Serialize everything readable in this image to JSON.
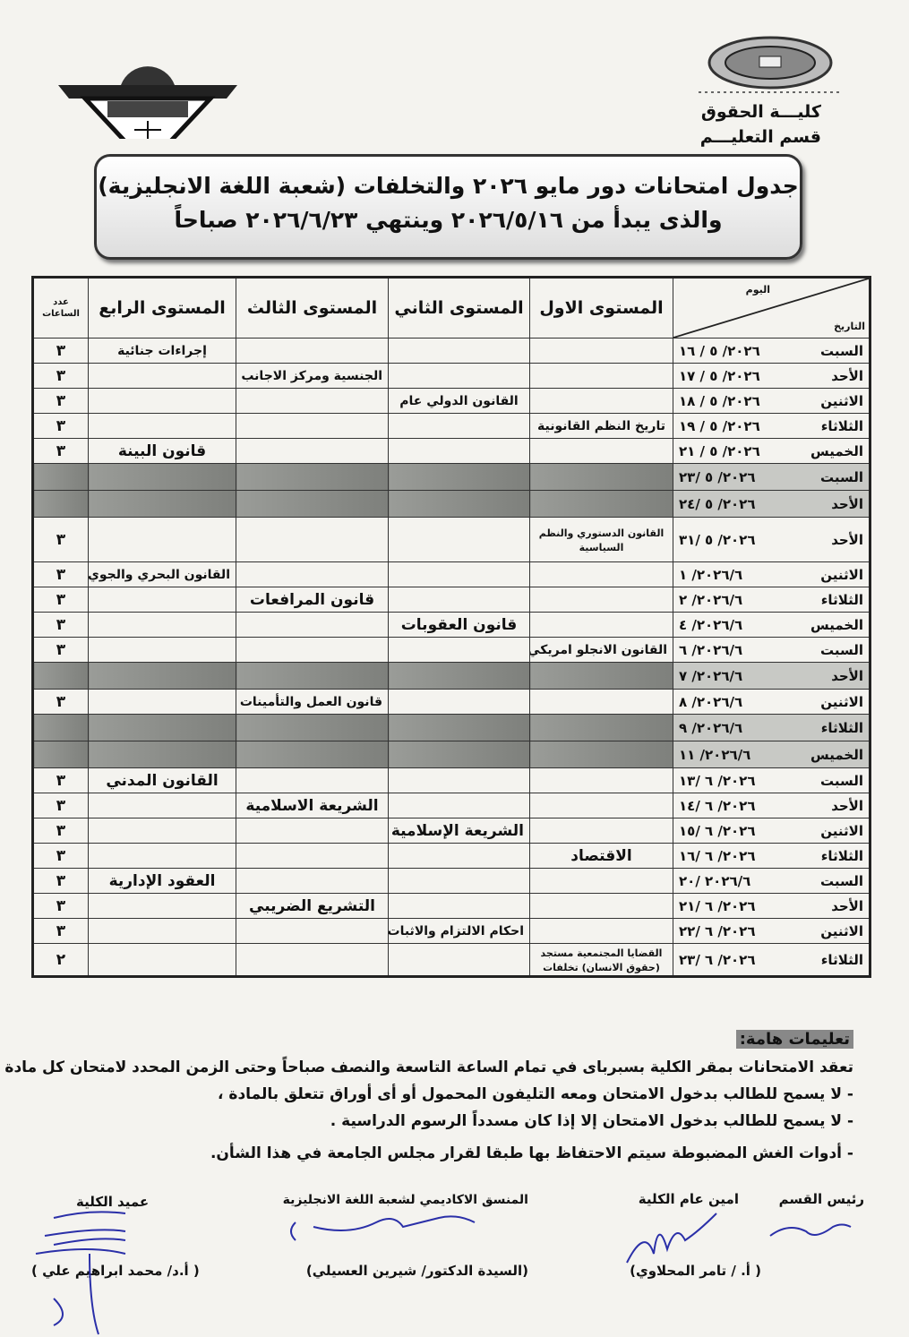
{
  "header": {
    "faculty": "كليـــة الحقوق",
    "department": "قسم التعليـــم",
    "title_line1": "جدول امتحانات دور مايو ٢٠٢٦ والتخلفات (شعبة اللغة الانجليزية)",
    "title_line2": "والذى يبدأ من ٢٠٢٦/٥/١٦ وينتهي ٢٠٢٦/٦/٢٣ صباحاً"
  },
  "table": {
    "corner_day": "اليوم",
    "corner_date": "التاريخ",
    "columns": [
      "المستوى الاول",
      "المستوى الثاني",
      "المستوى الثالث",
      "المستوى الرابع",
      "عدد الساعات"
    ],
    "rows": [
      {
        "day": "السبت",
        "date": "٢٠٢٦/ ٥ / ١٦",
        "l1": "",
        "l2": "",
        "l3": "",
        "l4": "إجراءات جنائية",
        "hours": "٣"
      },
      {
        "day": "الأحد",
        "date": "٢٠٢٦/ ٥ / ١٧",
        "l1": "",
        "l2": "",
        "l3": "الجنسية ومركز الاجانب",
        "l4": "",
        "hours": "٣"
      },
      {
        "day": "الاثنين",
        "date": "٢٠٢٦/ ٥ / ١٨",
        "l1": "",
        "l2": "القانون الدولي عام",
        "l3": "",
        "l4": "",
        "hours": "٣"
      },
      {
        "day": "الثلاثاء",
        "date": "٢٠٢٦/ ٥ / ١٩",
        "l1": "تاريخ النظم القانونية",
        "l2": "",
        "l3": "",
        "l4": "",
        "hours": "٣"
      },
      {
        "day": "الخميس",
        "date": "٢٠٢٦/ ٥ / ٢١",
        "l1": "",
        "l2": "",
        "l3": "",
        "l4": "قانون البينة",
        "hours": "٣"
      },
      {
        "day": "السبت",
        "date": "٢٠٢٦/ ٥ /٢٣",
        "l1": "",
        "l2": "",
        "l3": "",
        "l4": "",
        "hours": "",
        "shaded": true
      },
      {
        "day": "الأحد",
        "date": "٢٠٢٦/ ٥ /٢٤",
        "l1": "",
        "l2": "",
        "l3": "",
        "l4": "",
        "hours": "",
        "shaded": true
      },
      {
        "day": "الأحد",
        "date": "٢٠٢٦/ ٥ /٣١",
        "l1": "القانون الدستوري والنظم السياسية",
        "l2": "",
        "l3": "",
        "l4": "",
        "hours": "٣"
      },
      {
        "day": "الاثنين",
        "date": "٢٠٢٦/٦/ ١",
        "l1": "",
        "l2": "",
        "l3": "",
        "l4": "القانون البحري والجوي",
        "hours": "٣"
      },
      {
        "day": "الثلاثاء",
        "date": "٢٠٢٦/٦/ ٢",
        "l1": "",
        "l2": "",
        "l3": "قانون المرافعات",
        "l4": "",
        "hours": "٣"
      },
      {
        "day": "الخميس",
        "date": "٢٠٢٦/٦/ ٤",
        "l1": "",
        "l2": "قانون العقوبات",
        "l3": "",
        "l4": "",
        "hours": "٣"
      },
      {
        "day": "السبت",
        "date": "٢٠٢٦/٦/ ٦",
        "l1": "القانون الانجلو امريكي",
        "l2": "",
        "l3": "",
        "l4": "",
        "hours": "٣"
      },
      {
        "day": "الأحد",
        "date": "٢٠٢٦/٦/ ٧",
        "l1": "",
        "l2": "",
        "l3": "",
        "l4": "",
        "hours": "",
        "shaded": true
      },
      {
        "day": "الاثنين",
        "date": "٢٠٢٦/٦/ ٨",
        "l1": "",
        "l2": "",
        "l3": "قانون العمل والتأمينات",
        "l4": "",
        "hours": "٣"
      },
      {
        "day": "الثلاثاء",
        "date": "٢٠٢٦/٦/ ٩",
        "l1": "",
        "l2": "",
        "l3": "",
        "l4": "",
        "hours": "",
        "shaded": true
      },
      {
        "day": "الخميس",
        "date": "٢٠٢٦/٦/ ١١",
        "l1": "",
        "l2": "",
        "l3": "",
        "l4": "",
        "hours": "",
        "shaded": true
      },
      {
        "day": "السبت",
        "date": "٢٠٢٦/ ٦ /١٣",
        "l1": "",
        "l2": "",
        "l3": "",
        "l4": "القانون المدني",
        "hours": "٣"
      },
      {
        "day": "الأحد",
        "date": "٢٠٢٦/ ٦ /١٤",
        "l1": "",
        "l2": "",
        "l3": "الشريعة الاسلامية",
        "l4": "",
        "hours": "٣"
      },
      {
        "day": "الاثنين",
        "date": "٢٠٢٦/ ٦ /١٥",
        "l1": "",
        "l2": "الشريعة الإسلامية",
        "l3": "",
        "l4": "",
        "hours": "٣"
      },
      {
        "day": "الثلاثاء",
        "date": "٢٠٢٦/ ٦ /١٦",
        "l1": "الاقتصاد",
        "l2": "",
        "l3": "",
        "l4": "",
        "hours": "٣"
      },
      {
        "day": "السبت",
        "date": "٢٠٢٦/٦ /٢٠",
        "l1": "",
        "l2": "",
        "l3": "",
        "l4": "العقود الإدارية",
        "hours": "٣"
      },
      {
        "day": "الأحد",
        "date": "٢٠٢٦/ ٦ /٢١",
        "l1": "",
        "l2": "",
        "l3": "التشريع الضريبي",
        "l4": "",
        "hours": "٣"
      },
      {
        "day": "الاثنين",
        "date": "٢٠٢٦/ ٦ /٢٢",
        "l1": "",
        "l2": "احكام الالتزام والاثبات",
        "l3": "",
        "l4": "",
        "hours": "٣"
      },
      {
        "day": "الثلاثاء",
        "date": "٢٠٢٦/ ٦ /٢٣",
        "l1": "القضايا المجتمعية مستجد (حقوق الانسان) تخلفات",
        "l2": "",
        "l3": "",
        "l4": "",
        "hours": "٢"
      }
    ]
  },
  "notes": {
    "title": "تعليمات هامة:",
    "items": [
      "تعقد الامتحانات بمقر الكلية بسبرباى في تمام الساعة التاسعة والنصف صباحاً وحتى الزمن المحدد لامتحان كل مادة ،",
      "- لا يسمح للطالب بدخول الامتحان ومعه التليفون المحمول أو أى أوراق تتعلق بالمادة ،",
      "- لا يسمح للطالب بدخول الامتحان إلا إذا كان مسدداً الرسوم الدراسية .",
      "- أدوات الغش المضبوطة سيتم الاحتفاظ بها طبقا لقرار مجلس الجامعة في هذا الشأن."
    ]
  },
  "signatures": {
    "head_title": "رئيس القسم",
    "secretary_title": "امين عام الكلية",
    "secretary_name": "( أ. / تامر المحلاوي)",
    "coordinator_title": "المنسق الاكاديمي لشعبة اللغة الانجليزية",
    "coordinator_name": "(السيدة الدكتور/ شيرين العسيلي)",
    "dean_title": "عميد الكلية",
    "dean_name": "( أ.د/ محمد ابراهيم علي )"
  },
  "colors": {
    "ink": "#111111",
    "shade": "#8a8c88",
    "signature": "#2a2fa8"
  }
}
